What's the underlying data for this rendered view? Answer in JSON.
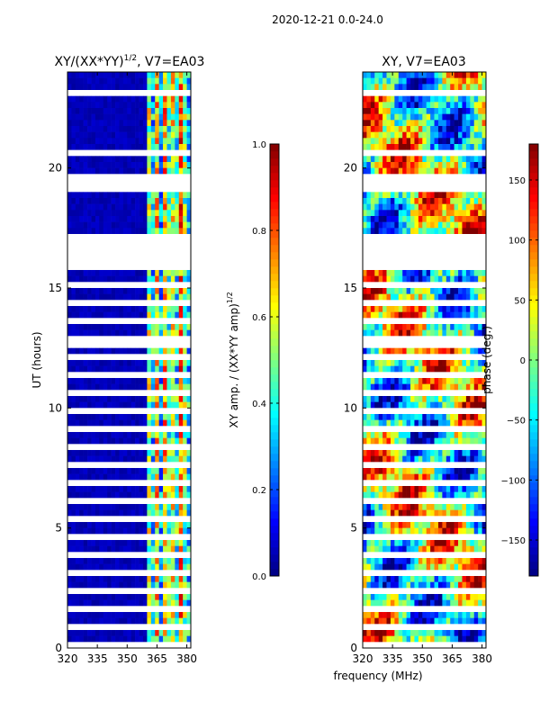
{
  "figure_title": "2020-12-21 0.0-24.0",
  "xlabel": "frequency (MHz)",
  "colors": {
    "jet": [
      "#00007f",
      "#0000ff",
      "#007fff",
      "#00ffff",
      "#7fff7f",
      "#ffff00",
      "#ff7f00",
      "#ff0000",
      "#7f0000"
    ],
    "flag": "#ffffff",
    "axis": "#000000"
  },
  "chart_data": [
    {
      "type": "heatmap",
      "title": "XY/(XX*YY)^{1/2}, V7=EA03",
      "title_main": "XY/(XX*YY)",
      "title_sup": "1/2",
      "title_rest": ", V7=EA03",
      "xlabel": "frequency (MHz)",
      "ylabel": "UT (hours)",
      "xlim": [
        320,
        382
      ],
      "ylim": [
        0,
        24
      ],
      "xticks": [
        320,
        335,
        350,
        365,
        380
      ],
      "yticks": [
        0,
        5,
        10,
        15,
        20
      ],
      "xtick_labels": [
        "320",
        "335",
        "350",
        "365",
        "380"
      ],
      "ytick_labels": [
        "0",
        "5",
        "10",
        "15",
        "20"
      ],
      "colorbar": {
        "label": "XY amp. / (XX*YY amp)^{1/2}",
        "label_main": "XY amp. / (XX*YY amp)",
        "label_sup": "1/2",
        "range": [
          0.0,
          1.0
        ],
        "ticks": [
          0.0,
          0.2,
          0.4,
          0.6,
          0.8,
          1.0
        ],
        "tick_labels": [
          "0.0",
          "0.2",
          "0.4",
          "0.6",
          "0.8",
          "1.0"
        ]
      },
      "flagged_ut_ranges": [
        [
          17.0,
          17.3
        ],
        [
          15.9,
          17.0
        ],
        [
          19.0,
          19.7
        ],
        [
          20.5,
          20.7
        ],
        [
          12.5,
          12.9
        ],
        [
          23.1,
          23.3
        ]
      ],
      "description": "low normalized amplitude (~0.05) below 360 MHz; high (0.3-0.8) above 360 MHz"
    },
    {
      "type": "heatmap",
      "title": "XY, V7=EA03",
      "xlabel": "frequency (MHz)",
      "ylabel": "",
      "xlim": [
        320,
        382
      ],
      "ylim": [
        0,
        24
      ],
      "xticks": [
        320,
        335,
        350,
        365,
        380
      ],
      "yticks": [
        0,
        5,
        10,
        15,
        20
      ],
      "xtick_labels": [
        "320",
        "335",
        "350",
        "365",
        "380"
      ],
      "ytick_labels": [
        "0",
        "5",
        "10",
        "15",
        "20"
      ],
      "colorbar": {
        "label": "phase (deg.)",
        "range": [
          -180,
          180
        ],
        "ticks": [
          -150,
          -100,
          -50,
          0,
          50,
          100,
          150
        ],
        "tick_labels": [
          "−150",
          "−100",
          "−50",
          "0",
          "50",
          "100",
          "150"
        ]
      },
      "flagged_ut_ranges": [
        [
          17.0,
          17.3
        ],
        [
          15.9,
          17.0
        ],
        [
          19.0,
          19.7
        ],
        [
          20.5,
          20.7
        ],
        [
          12.5,
          12.9
        ],
        [
          23.1,
          23.3
        ]
      ],
      "description": "XY phase spanning -180 to 180 deg, varying with frequency and time"
    }
  ]
}
